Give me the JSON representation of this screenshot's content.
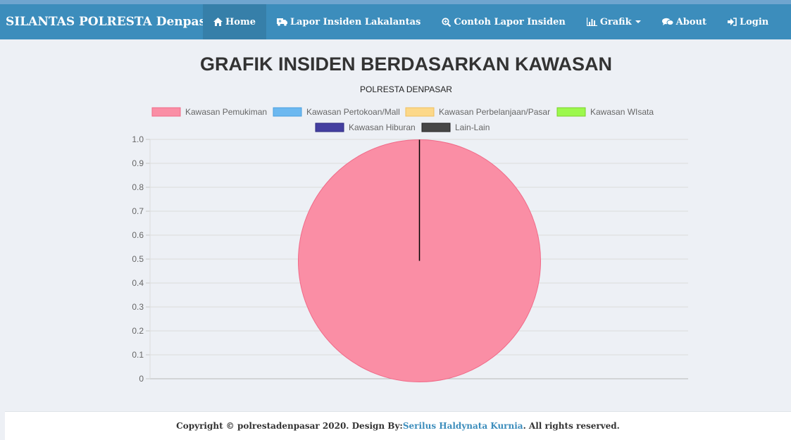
{
  "navbar": {
    "brand": "SILANTAS POLRESTA Denpasar",
    "items": [
      {
        "label": "Home",
        "icon": "home-icon",
        "active": true
      },
      {
        "label": "Lapor Insiden Lakalantas",
        "icon": "ambulance-icon"
      },
      {
        "label": "Contoh Lapor Insiden",
        "icon": "search-plus-icon"
      },
      {
        "label": "Grafik",
        "icon": "bar-chart-icon",
        "dropdown": true
      },
      {
        "label": "About",
        "icon": "comments-icon"
      },
      {
        "label": "Login",
        "icon": "sign-in-icon"
      }
    ]
  },
  "page": {
    "title": "GRAFIK INSIDEN BERDASARKAN KAWASAN",
    "subtitle": "POLRESTA DENPASAR"
  },
  "chart_data": {
    "type": "pie",
    "categories": [
      "Kawasan Pemukiman",
      "Kawasan Pertokoan/Mall",
      "Kawasan Perbelanjaan/Pasar",
      "Kawasan WIsata",
      "Kawasan Hiburan",
      "Lain-Lain"
    ],
    "values": [
      1,
      0,
      0,
      0,
      0,
      0
    ],
    "colors": [
      "#fa8ea5",
      "#6cb8f0",
      "#fcd889",
      "#9cf84c",
      "#443fa0",
      "#474747"
    ],
    "borders": [
      "#f06a88",
      "#4aa0e0",
      "#f0c060",
      "#7ad02c",
      "#2c2880",
      "#222222"
    ],
    "yticks": [
      "1.0",
      "0.9",
      "0.8",
      "0.7",
      "0.6",
      "0.5",
      "0.4",
      "0.3",
      "0.2",
      "0.1",
      "0"
    ],
    "ylim": [
      0,
      1.0
    ],
    "grid": true,
    "legend": "top"
  },
  "footer": {
    "prefix": "Copyright © polrestadenpasar 2020. Design By: ",
    "author": "Serilus Haldynata Kurnia",
    "suffix": ". All rights reserved."
  }
}
